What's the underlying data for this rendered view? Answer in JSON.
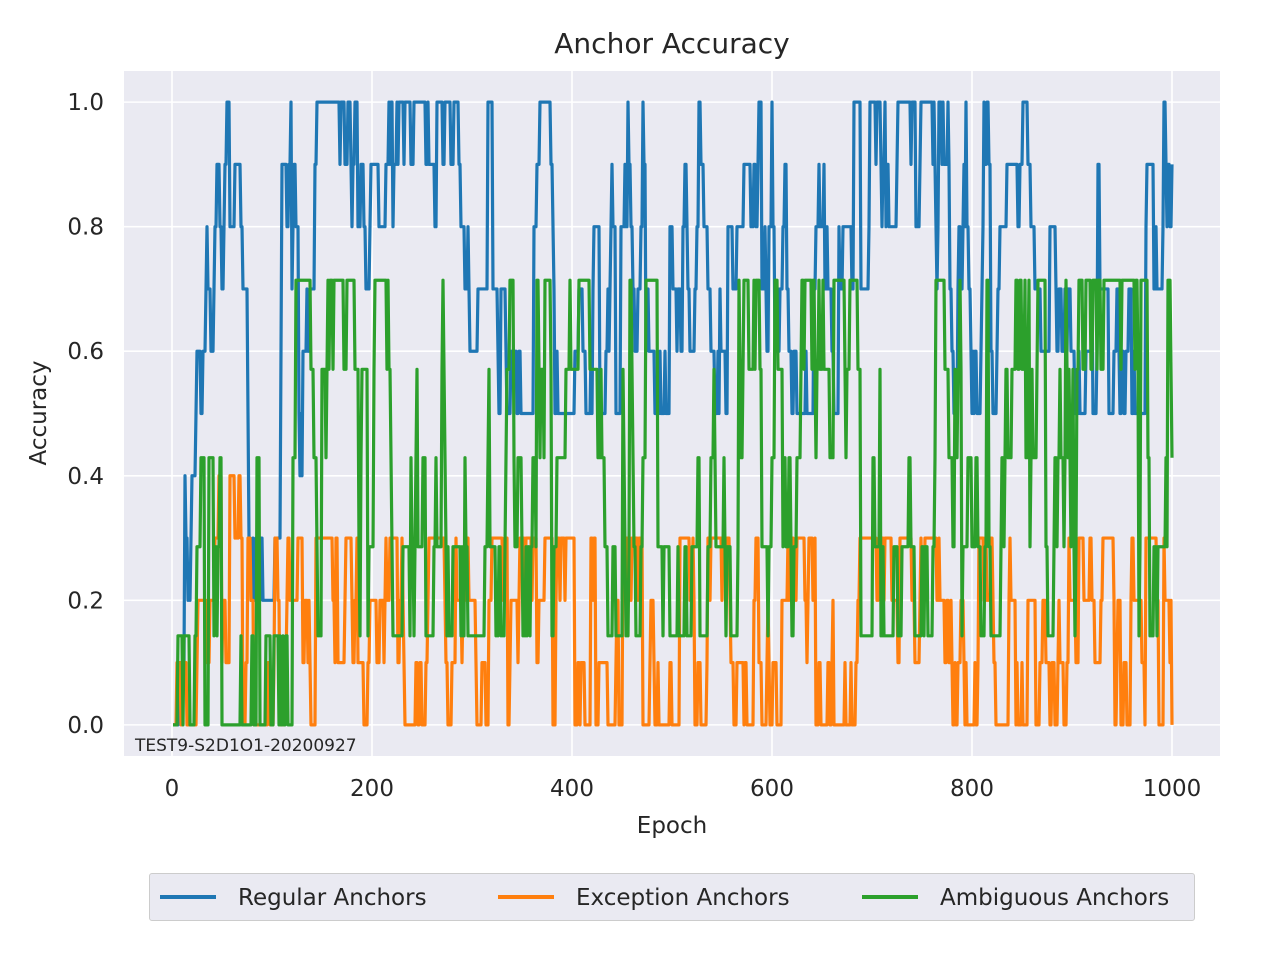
{
  "chart_data": {
    "type": "line",
    "title": "Anchor Accuracy",
    "xlabel": "Epoch",
    "ylabel": "Accuracy",
    "xlim": [
      -48,
      1048
    ],
    "ylim": [
      -0.05,
      1.05
    ],
    "x_ticks": [
      0,
      200,
      400,
      600,
      800,
      1000
    ],
    "y_ticks": [
      0.0,
      0.2,
      0.4,
      0.6,
      0.8,
      1.0
    ],
    "x_tick_labels": [
      "0",
      "200",
      "400",
      "600",
      "800",
      "1000"
    ],
    "y_tick_labels": [
      "0.0",
      "0.2",
      "0.4",
      "0.6",
      "0.8",
      "1.0"
    ],
    "grid": true,
    "legend_placement": "bottom-center",
    "annotation": "TEST9-S2D1O1-20200927",
    "x_start": 1,
    "x_end": 1000,
    "series": [
      {
        "name": "Regular Anchors",
        "color": "#1f77b4",
        "levels": [
          0.0,
          0.1,
          0.2,
          0.3,
          0.4,
          0.5,
          0.6,
          0.7,
          0.8,
          0.9,
          1.0
        ],
        "phases": [
          {
            "from": 1,
            "to": 12,
            "min": 0.0,
            "max": 0.1
          },
          {
            "from": 12,
            "to": 40,
            "min": 0.2,
            "max": 0.8
          },
          {
            "from": 40,
            "to": 110,
            "min": 0.2,
            "max": 1.0
          },
          {
            "from": 110,
            "to": 200,
            "min": 0.4,
            "max": 1.0
          },
          {
            "from": 200,
            "to": 1000,
            "min": 0.5,
            "max": 1.0
          }
        ],
        "end_value": 0.9
      },
      {
        "name": "Exception Anchors",
        "color": "#ff7f0e",
        "levels": [
          0.0,
          0.1,
          0.2,
          0.3,
          0.4,
          0.5
        ],
        "phases": [
          {
            "from": 1,
            "to": 15,
            "min": 0.0,
            "max": 0.1
          },
          {
            "from": 15,
            "to": 100,
            "min": 0.0,
            "max": 0.4
          },
          {
            "from": 100,
            "to": 1000,
            "min": 0.0,
            "max": 0.3
          }
        ],
        "end_value": 0.0
      },
      {
        "name": "Ambiguous Anchors",
        "color": "#2ca02c",
        "levels": [
          0.0,
          0.143,
          0.286,
          0.429,
          0.571,
          0.714
        ],
        "phases": [
          {
            "from": 1,
            "to": 20,
            "min": 0.0,
            "max": 0.143
          },
          {
            "from": 20,
            "to": 120,
            "min": 0.0,
            "max": 0.429
          },
          {
            "from": 120,
            "to": 1000,
            "min": 0.143,
            "max": 0.714
          }
        ],
        "end_value": 0.429
      }
    ]
  }
}
